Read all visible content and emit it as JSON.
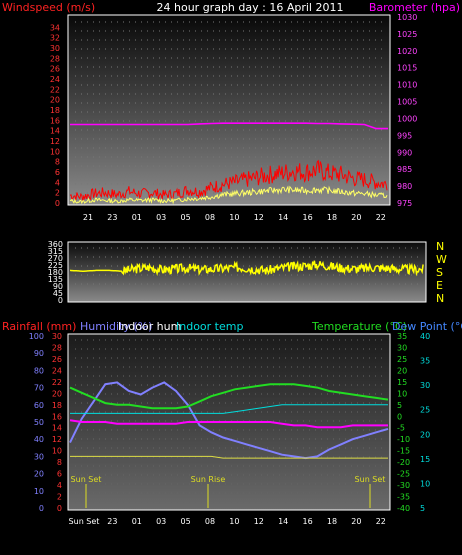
{
  "header": {
    "title": "24 hour graph day : 16 April 2011",
    "left_label": "Windspeed (m/s)",
    "right_label": "Barometer (hpa)"
  },
  "colors": {
    "wind": "#ff0000",
    "gust": "#ffff66",
    "barometer": "#ff00ff",
    "direction": "#ffff00",
    "rain": "#ff2222",
    "humidity": "#8080ff",
    "indoor_hum": "#ff00ff",
    "indoor_temp": "#00dddd",
    "temperature": "#22dd22",
    "dewpoint": "#4488ff",
    "hum_line": "#dddd44",
    "sun": "#dddd22"
  },
  "time_ticks": [
    "21",
    "23",
    "01",
    "03",
    "05",
    "08",
    "10",
    "12",
    "14",
    "16",
    "18",
    "20",
    "22"
  ],
  "bottom_time_ticks": [
    "Sun Set",
    "23",
    "01",
    "03",
    "05",
    "08",
    "10",
    "12",
    "14",
    "16",
    "18",
    "20",
    "22"
  ],
  "sun_labels": [
    "Sun Set",
    "Sun Rise",
    "Sun Set"
  ],
  "chart_data": [
    {
      "type": "line",
      "title": "24 hour graph day : 16 April 2011",
      "ylabel": "Windspeed (m/s)",
      "ylabel_right": "Barometer (hpa)",
      "ylim": [
        0,
        36
      ],
      "ylim_right": [
        975,
        1030
      ],
      "yticks": [
        0,
        2,
        4,
        6,
        8,
        10,
        12,
        14,
        16,
        18,
        20,
        22,
        24,
        26,
        28,
        30,
        32,
        34
      ],
      "yticks_right": [
        975,
        980,
        985,
        990,
        995,
        1000,
        1005,
        1010,
        1015,
        1020,
        1025,
        1030
      ],
      "x": [
        20,
        21,
        22,
        23,
        24,
        25,
        26,
        27,
        28,
        29,
        30,
        31,
        32,
        33,
        34,
        35,
        36,
        37,
        38,
        39,
        40,
        41,
        42,
        43,
        44,
        45,
        46,
        47
      ],
      "series": [
        {
          "name": "Windspeed",
          "axis": "left",
          "values": [
            1.5,
            1.2,
            1.8,
            2.0,
            1.6,
            2.2,
            1.8,
            2.0,
            1.5,
            1.8,
            2.5,
            2.2,
            3.0,
            3.6,
            4.0,
            4.5,
            5.0,
            5.5,
            5.8,
            6.2,
            6.0,
            6.4,
            5.8,
            5.5,
            4.8,
            4.5,
            4.0,
            3.6
          ]
        },
        {
          "name": "Gust",
          "axis": "left",
          "values": [
            0.4,
            0.2,
            0.6,
            0.5,
            0.3,
            0.6,
            0.5,
            0.6,
            0.4,
            0.5,
            0.8,
            0.9,
            1.2,
            1.6,
            1.8,
            2.0,
            2.2,
            2.4,
            2.6,
            2.5,
            2.4,
            2.6,
            2.4,
            2.2,
            1.9,
            1.8,
            1.5,
            1.4
          ]
        },
        {
          "name": "Barometer",
          "axis": "right",
          "values": [
            998.2,
            998.2,
            998.2,
            998.2,
            998.2,
            998.2,
            998.2,
            998.2,
            998.2,
            998.2,
            998.2,
            998.4,
            998.5,
            998.6,
            998.6,
            998.6,
            998.6,
            998.6,
            998.6,
            998.6,
            998.6,
            998.5,
            998.5,
            998.4,
            998.3,
            998.2,
            997.0,
            997.0
          ]
        }
      ]
    },
    {
      "type": "line",
      "ylabel_right": "N W S E N",
      "ylim": [
        0,
        360
      ],
      "yticks": [
        0,
        45,
        90,
        135,
        180,
        225,
        270,
        315,
        360
      ],
      "x": [
        20,
        21,
        22,
        23,
        24,
        25,
        26,
        27,
        28,
        29,
        30,
        31,
        32,
        33,
        34,
        35,
        36,
        37,
        38,
        39,
        40,
        41,
        42,
        43,
        44,
        45,
        46,
        47
      ],
      "series": [
        {
          "name": "Wind direction",
          "values": [
            190,
            185,
            190,
            190,
            185,
            200,
            210,
            195,
            200,
            205,
            195,
            200,
            205,
            210,
            200,
            190,
            205,
            215,
            220,
            230,
            215,
            205,
            200,
            210,
            205,
            200,
            195,
            200
          ]
        }
      ]
    },
    {
      "type": "line",
      "labels": [
        "Rainfall (mm)",
        "Humidity (%)",
        "Indoor hum",
        "Indoor temp",
        "Temperature (°C)",
        "Dew Point (°C)"
      ],
      "ylim": [
        0,
        100
      ],
      "yticks": [
        0,
        10,
        20,
        30,
        40,
        50,
        60,
        70,
        80,
        90,
        100
      ],
      "yticks_rain": [
        0,
        2,
        4,
        6,
        8,
        10,
        12,
        14,
        16,
        18,
        20,
        22,
        24,
        26,
        28,
        30
      ],
      "yticks_temp": [
        -40,
        -35,
        -30,
        -25,
        -20,
        -15,
        -10,
        -5,
        0,
        5,
        10,
        15,
        20,
        25,
        30,
        35
      ],
      "yticks_dew": [
        5,
        10,
        15,
        20,
        25,
        30,
        35,
        40
      ],
      "x": [
        20,
        21,
        22,
        23,
        24,
        25,
        26,
        27,
        28,
        29,
        30,
        31,
        32,
        33,
        34,
        35,
        36,
        37,
        38,
        39,
        40,
        41,
        42,
        43,
        44,
        45,
        46,
        47
      ],
      "series": [
        {
          "name": "Humidity",
          "values": [
            38,
            52,
            62,
            72,
            73,
            68,
            66,
            70,
            73,
            68,
            60,
            48,
            44,
            41,
            39,
            37,
            35,
            33,
            31,
            30,
            29,
            30,
            34,
            37,
            40,
            42,
            44,
            46
          ]
        },
        {
          "name": "Temperature",
          "values": [
            70,
            67,
            64,
            61,
            60,
            60,
            59,
            58,
            58,
            58,
            59,
            62,
            65,
            67,
            69,
            70,
            71,
            72,
            72,
            72,
            71,
            70,
            68,
            67,
            66,
            65,
            64,
            63
          ]
        },
        {
          "name": "Indoor temp",
          "values": [
            55,
            55,
            55,
            55,
            55,
            55,
            55,
            55,
            55,
            55,
            55,
            55,
            55,
            55,
            56,
            57,
            58,
            59,
            60,
            60,
            60,
            60,
            60,
            60,
            60,
            60,
            60,
            60
          ]
        },
        {
          "name": "Indoor hum",
          "values": [
            51,
            50,
            50,
            50,
            49,
            49,
            49,
            49,
            49,
            49,
            50,
            50,
            50,
            50,
            50,
            50,
            50,
            50,
            49,
            48,
            48,
            47,
            47,
            47,
            48,
            48,
            48,
            48
          ]
        },
        {
          "name": "Hum line",
          "values": [
            30,
            30,
            30,
            30,
            30,
            30,
            30,
            30,
            30,
            30,
            30,
            30,
            30,
            29,
            29,
            29,
            29,
            29,
            29,
            29,
            29,
            29,
            29,
            29,
            29,
            29,
            29,
            29
          ]
        }
      ]
    }
  ]
}
